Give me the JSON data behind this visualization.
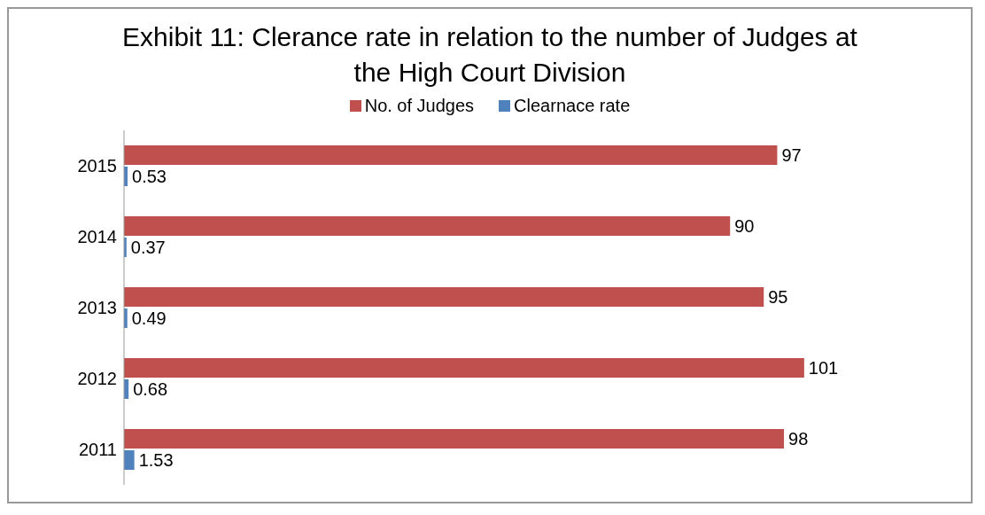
{
  "chart_data": {
    "type": "bar",
    "orientation": "horizontal",
    "title": "Exhibit 11: Clerance rate in relation to the number of Judges at the High Court Division",
    "categories": [
      "2015",
      "2014",
      "2013",
      "2012",
      "2011"
    ],
    "series": [
      {
        "name": "No. of Judges",
        "color": "#c0504d",
        "values": [
          97,
          90,
          95,
          101,
          98
        ]
      },
      {
        "name": "Clearnace rate",
        "color": "#4f81bd",
        "values": [
          0.53,
          0.37,
          0.49,
          0.68,
          1.53
        ]
      }
    ],
    "data_labels": true,
    "legend": "top",
    "grid": false
  }
}
